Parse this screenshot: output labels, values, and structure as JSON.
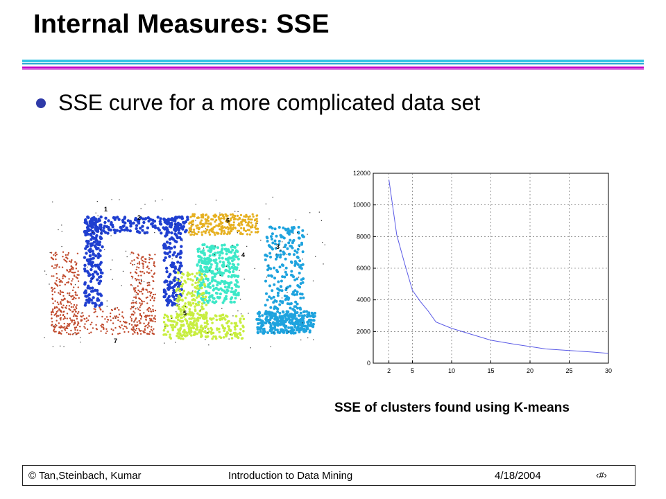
{
  "slide": {
    "title": "Internal Measures: SSE",
    "bullet": "SSE curve for a more complicated data set",
    "caption": "SSE of clusters found using K-means"
  },
  "footer": {
    "authors": "© Tan,Steinbach, Kumar",
    "book": "Introduction to Data Mining",
    "date": "4/18/2004",
    "page": "‹#›"
  },
  "colors": {
    "accent_cyan": "#33c4e4",
    "accent_magenta": "#c000c8",
    "bullet": "#2f3aa8",
    "sse_line": "#5a5ae6"
  },
  "scatter_clusters": [
    {
      "label": "1",
      "color": "#1f3fd0"
    },
    {
      "label": "2",
      "color": "#1f3fd0"
    },
    {
      "label": "3",
      "color": "#1ea3de"
    },
    {
      "label": "4",
      "color": "#3de8c8"
    },
    {
      "label": "5",
      "color": "#c8ee40"
    },
    {
      "label": "6",
      "color": "#e6b020"
    },
    {
      "label": "7",
      "color": "#c0482a"
    }
  ],
  "chart_data": {
    "type": "line",
    "title": "",
    "xlabel": "",
    "ylabel": "",
    "x": [
      2,
      3,
      4,
      5,
      6,
      7,
      8,
      10,
      12,
      15,
      18,
      20,
      22,
      25,
      28,
      30
    ],
    "series": [
      {
        "values": [
          11600,
          8100,
          6300,
          4600,
          3900,
          3300,
          2600,
          2200,
          1900,
          1450,
          1200,
          1050,
          900,
          800,
          700,
          620
        ]
      }
    ],
    "xlim": [
      0,
      30
    ],
    "ylim": [
      0,
      12000
    ],
    "xticks": [
      2,
      5,
      10,
      15,
      20,
      25,
      30
    ],
    "yticks": [
      0,
      2000,
      4000,
      6000,
      8000,
      10000,
      12000
    ],
    "grid": true
  }
}
